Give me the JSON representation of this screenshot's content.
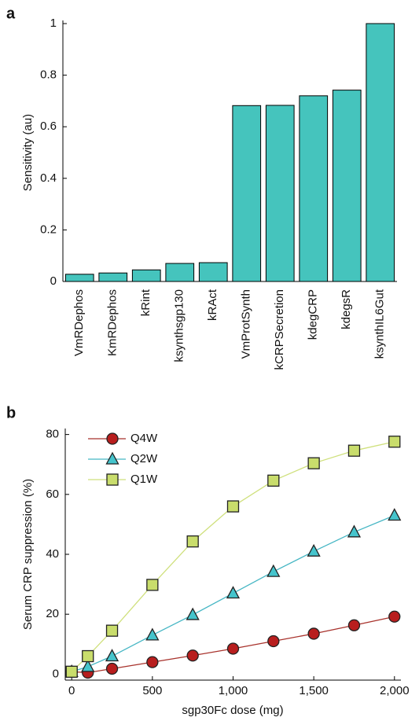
{
  "chart_data": [
    {
      "type": "bar",
      "panel": "a",
      "ylabel": "Sensitivity (au)",
      "categories": [
        "VmRDephos",
        "KmRDephos",
        "kRint",
        "ksynthsgp130",
        "kRAct",
        "VmProtSynth",
        "kCRPSecretion",
        "kdegCRP",
        "kdegsR",
        "ksynthIL6Gut"
      ],
      "values": [
        0.028,
        0.033,
        0.045,
        0.07,
        0.073,
        0.682,
        0.683,
        0.72,
        0.742,
        1.0
      ],
      "color": "#45c4bd",
      "ylim": [
        0,
        1
      ],
      "yticks": [
        0,
        0.2,
        0.4,
        0.6,
        0.8,
        1
      ]
    },
    {
      "type": "line",
      "panel": "b",
      "xlabel": "sgp30Fc dose (mg)",
      "ylabel": "Serum CRP suppression (%)",
      "x": [
        0,
        100,
        250,
        500,
        750,
        1000,
        1250,
        1500,
        1750,
        2000
      ],
      "series": [
        {
          "name": "Q4W",
          "color": "#b81e1e",
          "line_color": "#a8322c",
          "marker": "circle",
          "values": [
            0.8,
            0.5,
            1.8,
            4,
            6.2,
            8.5,
            11,
            13.5,
            16.3,
            19.2
          ]
        },
        {
          "name": "Q2W",
          "color": "#45c4cc",
          "line_color": "#45b6c4",
          "marker": "triangle",
          "values": [
            0.8,
            2.5,
            6,
            13,
            19.8,
            27,
            34.2,
            41,
            47.4,
            53
          ]
        },
        {
          "name": "Q1W",
          "color": "#c9dd6c",
          "line_color": "#cfe07c",
          "marker": "square",
          "values": [
            0.8,
            6,
            14.5,
            29.8,
            44.3,
            56,
            64.6,
            70.4,
            74.6,
            77.6
          ]
        }
      ],
      "xlim": [
        -40,
        2040
      ],
      "ylim": [
        -2,
        82
      ],
      "xticks": [
        0,
        500,
        {
          "value": 1000,
          "label": "1,000"
        },
        {
          "value": 1500,
          "label": "1,500"
        },
        {
          "value": 2000,
          "label": "2,000"
        }
      ],
      "yticks": [
        0,
        20,
        40,
        60,
        80
      ]
    }
  ]
}
